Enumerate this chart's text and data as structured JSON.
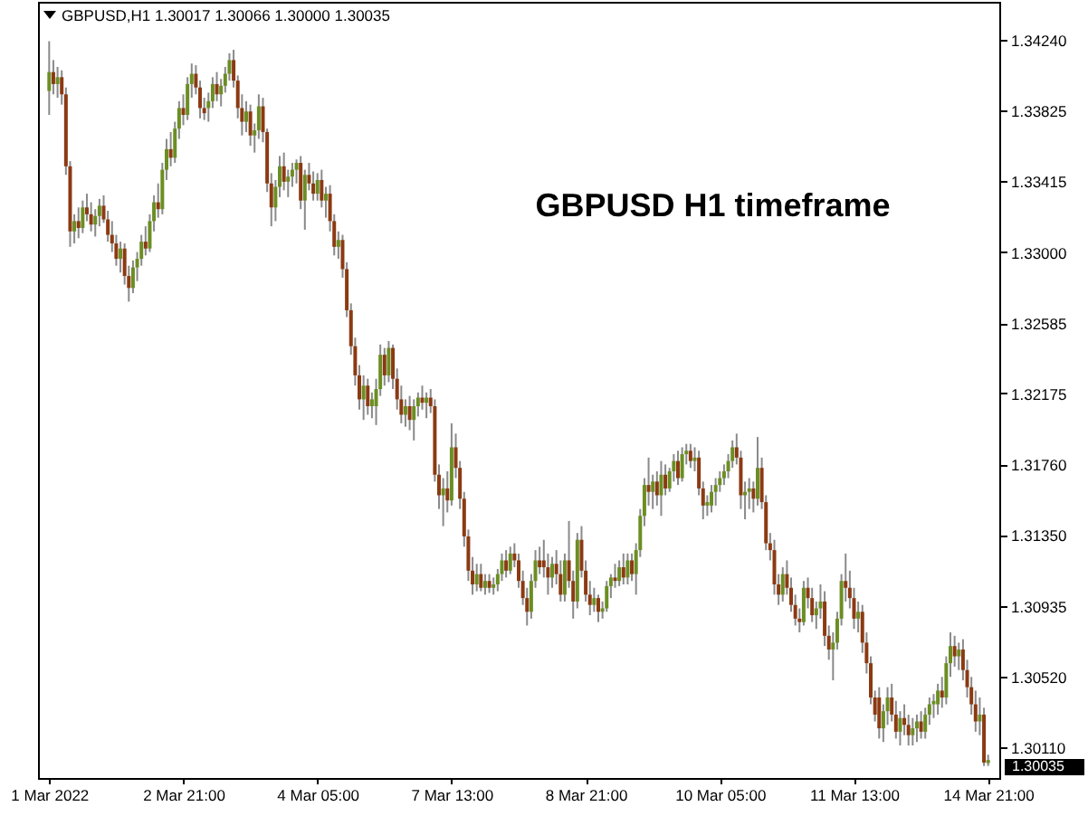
{
  "chart_data": {
    "type": "candlestick",
    "title": "GBPUSD,H1 1.30017 1.30066 1.30000 1.30035",
    "categories": [
      "1 Mar 2022",
      null,
      null,
      null,
      null,
      null,
      null,
      null,
      null,
      null,
      null,
      null,
      null,
      null,
      null,
      null,
      null,
      null,
      null,
      null,
      null,
      null,
      null,
      null,
      null,
      null,
      null,
      null,
      null,
      null,
      null,
      null,
      "2 Mar 21:00",
      null,
      null,
      null,
      null,
      null,
      null,
      null,
      null,
      null,
      null,
      null,
      null,
      null,
      null,
      null,
      null,
      null,
      null,
      null,
      null,
      null,
      null,
      null,
      null,
      null,
      null,
      null,
      null,
      null,
      null,
      null,
      "4 Mar 05:00",
      null,
      null,
      null,
      null,
      null,
      null,
      null,
      null,
      null,
      null,
      null,
      null,
      null,
      null,
      null,
      null,
      null,
      null,
      null,
      null,
      null,
      null,
      null,
      null,
      null,
      null,
      null,
      null,
      null,
      null,
      null,
      "7 Mar 13:00",
      null,
      null,
      null,
      null,
      null,
      null,
      null,
      null,
      null,
      null,
      null,
      null,
      null,
      null,
      null,
      null,
      null,
      null,
      null,
      null,
      null,
      null,
      null,
      null,
      null,
      null,
      null,
      null,
      null,
      null,
      null,
      "8 Mar 21:00",
      null,
      null,
      null,
      null,
      null,
      null,
      null,
      null,
      null,
      null,
      null,
      null,
      null,
      null,
      null,
      null,
      null,
      null,
      null,
      null,
      null,
      null,
      null,
      null,
      null,
      null,
      null,
      null,
      null,
      null,
      null,
      "10 Mar 05:00",
      null,
      null,
      null,
      null,
      null,
      null,
      null,
      null,
      null,
      null,
      null,
      null,
      null,
      null,
      null,
      null,
      null,
      null,
      null,
      null,
      null,
      null,
      null,
      null,
      null,
      null,
      null,
      null,
      null,
      null,
      null,
      "11 Mar 13:00",
      null,
      null,
      null,
      null,
      null,
      null,
      null,
      null,
      null,
      null,
      null,
      null,
      null,
      null,
      null,
      null,
      null,
      null,
      null,
      null,
      null,
      null,
      null,
      null,
      null,
      null,
      null,
      null,
      null,
      null,
      null,
      "14 Mar 21:00"
    ],
    "ohlc": [
      [
        1.3394,
        1.3423,
        1.338,
        1.3405
      ],
      [
        1.3405,
        1.3412,
        1.3392,
        1.3398
      ],
      [
        1.3398,
        1.3408,
        1.339,
        1.3402
      ],
      [
        1.3402,
        1.3406,
        1.3386,
        1.3392
      ],
      [
        1.3392,
        1.3396,
        1.3345,
        1.335
      ],
      [
        1.335,
        1.3353,
        1.3303,
        1.3312
      ],
      [
        1.3312,
        1.3322,
        1.3305,
        1.3318
      ],
      [
        1.3318,
        1.3326,
        1.3308,
        1.3314
      ],
      [
        1.3314,
        1.333,
        1.3311,
        1.3326
      ],
      [
        1.3326,
        1.3334,
        1.3318,
        1.3322
      ],
      [
        1.3322,
        1.3329,
        1.3312,
        1.3316
      ],
      [
        1.3316,
        1.3325,
        1.3309,
        1.3321
      ],
      [
        1.3321,
        1.3331,
        1.3315,
        1.3327
      ],
      [
        1.3327,
        1.3333,
        1.3317,
        1.3319
      ],
      [
        1.3319,
        1.3324,
        1.3306,
        1.331
      ],
      [
        1.331,
        1.3318,
        1.33,
        1.3305
      ],
      [
        1.3305,
        1.331,
        1.3292,
        1.3296
      ],
      [
        1.3296,
        1.3306,
        1.3288,
        1.3302
      ],
      [
        1.3302,
        1.3305,
        1.3281,
        1.3286
      ],
      [
        1.3286,
        1.3292,
        1.3271,
        1.3279
      ],
      [
        1.3279,
        1.3295,
        1.3276,
        1.3291
      ],
      [
        1.3291,
        1.33,
        1.3283,
        1.3296
      ],
      [
        1.3296,
        1.331,
        1.3292,
        1.3306
      ],
      [
        1.3306,
        1.3315,
        1.3298,
        1.3302
      ],
      [
        1.3302,
        1.3322,
        1.33,
        1.3318
      ],
      [
        1.3318,
        1.3333,
        1.3312,
        1.3329
      ],
      [
        1.3329,
        1.334,
        1.332,
        1.3325
      ],
      [
        1.3325,
        1.3352,
        1.3322,
        1.3348
      ],
      [
        1.3348,
        1.3366,
        1.3342,
        1.336
      ],
      [
        1.336,
        1.337,
        1.335,
        1.3355
      ],
      [
        1.3355,
        1.3376,
        1.3352,
        1.3372
      ],
      [
        1.3372,
        1.3388,
        1.3366,
        1.3384
      ],
      [
        1.3384,
        1.3392,
        1.3374,
        1.338
      ],
      [
        1.338,
        1.3402,
        1.3377,
        1.3398
      ],
      [
        1.3398,
        1.341,
        1.339,
        1.3404
      ],
      [
        1.3404,
        1.3409,
        1.3392,
        1.3396
      ],
      [
        1.3396,
        1.34,
        1.3378,
        1.3384
      ],
      [
        1.3384,
        1.339,
        1.3377,
        1.3381
      ],
      [
        1.3384,
        1.3393,
        1.3376,
        1.3388
      ],
      [
        1.3388,
        1.3402,
        1.3384,
        1.3398
      ],
      [
        1.3398,
        1.3405,
        1.3388,
        1.3392
      ],
      [
        1.3392,
        1.3401,
        1.3385,
        1.3397
      ],
      [
        1.3397,
        1.3408,
        1.3393,
        1.3404
      ],
      [
        1.3404,
        1.3416,
        1.34,
        1.3412
      ],
      [
        1.3412,
        1.3418,
        1.3396,
        1.34
      ],
      [
        1.34,
        1.3403,
        1.3378,
        1.3384
      ],
      [
        1.3384,
        1.3392,
        1.3368,
        1.3376
      ],
      [
        1.3376,
        1.3388,
        1.337,
        1.3382
      ],
      [
        1.3382,
        1.3386,
        1.3362,
        1.3368
      ],
      [
        1.3368,
        1.3375,
        1.3358,
        1.3371
      ],
      [
        1.3371,
        1.3392,
        1.3366,
        1.3385
      ],
      [
        1.3385,
        1.339,
        1.3364,
        1.337
      ],
      [
        1.337,
        1.3372,
        1.3335,
        1.334
      ],
      [
        1.334,
        1.3346,
        1.3315,
        1.3326
      ],
      [
        1.3326,
        1.3342,
        1.3318,
        1.3338
      ],
      [
        1.3338,
        1.3356,
        1.3332,
        1.335
      ],
      [
        1.335,
        1.3358,
        1.3336,
        1.3341
      ],
      [
        1.3341,
        1.3348,
        1.3332,
        1.3344
      ],
      [
        1.3344,
        1.3352,
        1.3338,
        1.3348
      ],
      [
        1.3348,
        1.3354,
        1.334,
        1.3352
      ],
      [
        1.3352,
        1.3356,
        1.3325,
        1.333
      ],
      [
        1.333,
        1.3348,
        1.3313,
        1.3345
      ],
      [
        1.3345,
        1.3352,
        1.3336,
        1.334
      ],
      [
        1.334,
        1.3347,
        1.333,
        1.3334
      ],
      [
        1.3334,
        1.3346,
        1.333,
        1.3342
      ],
      [
        1.3342,
        1.3348,
        1.3326,
        1.333
      ],
      [
        1.333,
        1.3338,
        1.332,
        1.3334
      ],
      [
        1.3334,
        1.3339,
        1.3312,
        1.3318
      ],
      [
        1.3318,
        1.3322,
        1.3298,
        1.3303
      ],
      [
        1.3303,
        1.3312,
        1.3296,
        1.3307
      ],
      [
        1.3307,
        1.331,
        1.3285,
        1.329
      ],
      [
        1.329,
        1.3294,
        1.3262,
        1.3266
      ],
      [
        1.3266,
        1.327,
        1.324,
        1.3245
      ],
      [
        1.3245,
        1.325,
        1.3222,
        1.3228
      ],
      [
        1.3228,
        1.3234,
        1.3208,
        1.3214
      ],
      [
        1.3214,
        1.3228,
        1.3202,
        1.3222
      ],
      [
        1.3222,
        1.3226,
        1.3205,
        1.321
      ],
      [
        1.321,
        1.3218,
        1.3203,
        1.3214
      ],
      [
        1.321,
        1.3226,
        1.3199,
        1.322
      ],
      [
        1.322,
        1.3246,
        1.3216,
        1.324
      ],
      [
        1.324,
        1.3244,
        1.3222,
        1.3228
      ],
      [
        1.3228,
        1.3248,
        1.3224,
        1.3244
      ],
      [
        1.3244,
        1.3246,
        1.322,
        1.3226
      ],
      [
        1.3226,
        1.3232,
        1.3208,
        1.3214
      ],
      [
        1.3214,
        1.3222,
        1.32,
        1.3205
      ],
      [
        1.3205,
        1.3214,
        1.3198,
        1.321
      ],
      [
        1.321,
        1.3216,
        1.3196,
        1.3202
      ],
      [
        1.3202,
        1.3214,
        1.319,
        1.321
      ],
      [
        1.321,
        1.3218,
        1.3204,
        1.3215
      ],
      [
        1.3215,
        1.3222,
        1.3208,
        1.3212
      ],
      [
        1.3212,
        1.3218,
        1.3203,
        1.3215
      ],
      [
        1.3215,
        1.322,
        1.3206,
        1.321
      ],
      [
        1.321,
        1.3214,
        1.3166,
        1.317
      ],
      [
        1.317,
        1.3176,
        1.315,
        1.3158
      ],
      [
        1.3158,
        1.3168,
        1.314,
        1.3162
      ],
      [
        1.3162,
        1.3172,
        1.3148,
        1.3155
      ],
      [
        1.3155,
        1.32,
        1.3152,
        1.3186
      ],
      [
        1.3186,
        1.3194,
        1.3168,
        1.3174
      ],
      [
        1.3174,
        1.3178,
        1.315,
        1.3156
      ],
      [
        1.3156,
        1.316,
        1.3128,
        1.3134
      ],
      [
        1.3134,
        1.3138,
        1.3108,
        1.3114
      ],
      [
        1.3114,
        1.3122,
        1.31,
        1.3106
      ],
      [
        1.3106,
        1.3118,
        1.3102,
        1.3112
      ],
      [
        1.3112,
        1.3118,
        1.3102,
        1.3104
      ],
      [
        1.3104,
        1.3112,
        1.31,
        1.3108
      ],
      [
        1.3108,
        1.3112,
        1.3101,
        1.3104
      ],
      [
        1.3104,
        1.311,
        1.31,
        1.3106
      ],
      [
        1.3106,
        1.3115,
        1.3102,
        1.3112
      ],
      [
        1.3112,
        1.3124,
        1.3108,
        1.312
      ],
      [
        1.312,
        1.3126,
        1.311,
        1.3114
      ],
      [
        1.3114,
        1.3128,
        1.3112,
        1.3124
      ],
      [
        1.3124,
        1.313,
        1.3116,
        1.312
      ],
      [
        1.312,
        1.3124,
        1.3104,
        1.3108
      ],
      [
        1.3108,
        1.3114,
        1.3094,
        1.3098
      ],
      [
        1.3098,
        1.3104,
        1.3082,
        1.309
      ],
      [
        1.309,
        1.3112,
        1.3086,
        1.3108
      ],
      [
        1.3108,
        1.3126,
        1.3104,
        1.312
      ],
      [
        1.312,
        1.3128,
        1.3112,
        1.3116
      ],
      [
        1.312,
        1.3132,
        1.311,
        1.3116
      ],
      [
        1.3116,
        1.3124,
        1.31,
        1.311
      ],
      [
        1.311,
        1.3122,
        1.3104,
        1.3118
      ],
      [
        1.3118,
        1.3126,
        1.3106,
        1.3112
      ],
      [
        1.3112,
        1.312,
        1.3096,
        1.31
      ],
      [
        1.31,
        1.3124,
        1.3096,
        1.312
      ],
      [
        1.312,
        1.3143,
        1.3104,
        1.3108
      ],
      [
        1.3108,
        1.3114,
        1.3086,
        1.3096
      ],
      [
        1.3096,
        1.3136,
        1.3092,
        1.3132
      ],
      [
        1.3132,
        1.314,
        1.311,
        1.3114
      ],
      [
        1.3114,
        1.312,
        1.3096,
        1.31
      ],
      [
        1.31,
        1.3108,
        1.3088,
        1.3094
      ],
      [
        1.3094,
        1.3104,
        1.309,
        1.3098
      ],
      [
        1.3098,
        1.31,
        1.3084,
        1.309
      ],
      [
        1.309,
        1.3096,
        1.3086,
        1.3092
      ],
      [
        1.3092,
        1.3108,
        1.309,
        1.3105
      ],
      [
        1.3105,
        1.3112,
        1.3098,
        1.311
      ],
      [
        1.311,
        1.3118,
        1.3104,
        1.3108
      ],
      [
        1.3108,
        1.312,
        1.3105,
        1.3116
      ],
      [
        1.3116,
        1.3124,
        1.3106,
        1.311
      ],
      [
        1.311,
        1.3124,
        1.3106,
        1.312
      ],
      [
        1.312,
        1.3124,
        1.3108,
        1.3112
      ],
      [
        1.3112,
        1.313,
        1.31,
        1.3126
      ],
      [
        1.3126,
        1.315,
        1.3122,
        1.3146
      ],
      [
        1.3146,
        1.3168,
        1.314,
        1.3164
      ],
      [
        1.3164,
        1.318,
        1.3152,
        1.316
      ],
      [
        1.316,
        1.317,
        1.315,
        1.3166
      ],
      [
        1.3166,
        1.3172,
        1.3152,
        1.3158
      ],
      [
        1.3158,
        1.3178,
        1.3146,
        1.317
      ],
      [
        1.317,
        1.3176,
        1.3158,
        1.3162
      ],
      [
        1.3162,
        1.3174,
        1.316,
        1.3172
      ],
      [
        1.3172,
        1.3182,
        1.3166,
        1.3178
      ],
      [
        1.3178,
        1.3184,
        1.3164,
        1.3168
      ],
      [
        1.3168,
        1.3186,
        1.3166,
        1.3182
      ],
      [
        1.3182,
        1.3188,
        1.3176,
        1.3184
      ],
      [
        1.3184,
        1.3188,
        1.3174,
        1.3178
      ],
      [
        1.3178,
        1.3186,
        1.3172,
        1.318
      ],
      [
        1.318,
        1.3184,
        1.3158,
        1.3162
      ],
      [
        1.3162,
        1.3166,
        1.3144,
        1.3152
      ],
      [
        1.3152,
        1.3158,
        1.3146,
        1.3154
      ],
      [
        1.3152,
        1.3164,
        1.3148,
        1.316
      ],
      [
        1.316,
        1.3168,
        1.3152,
        1.3164
      ],
      [
        1.3164,
        1.3172,
        1.316,
        1.3168
      ],
      [
        1.3168,
        1.3176,
        1.3164,
        1.3172
      ],
      [
        1.3172,
        1.3182,
        1.3168,
        1.3178
      ],
      [
        1.3178,
        1.319,
        1.3174,
        1.3186
      ],
      [
        1.3186,
        1.3194,
        1.3176,
        1.318
      ],
      [
        1.318,
        1.3184,
        1.315,
        1.3158
      ],
      [
        1.3158,
        1.3166,
        1.3144,
        1.316
      ],
      [
        1.316,
        1.3168,
        1.315,
        1.3162
      ],
      [
        1.3162,
        1.3166,
        1.3148,
        1.3156
      ],
      [
        1.3156,
        1.3192,
        1.3152,
        1.3174
      ],
      [
        1.3174,
        1.318,
        1.315,
        1.3154
      ],
      [
        1.3154,
        1.3158,
        1.3126,
        1.313
      ],
      [
        1.313,
        1.3136,
        1.312,
        1.3126
      ],
      [
        1.3126,
        1.3132,
        1.31,
        1.3106
      ],
      [
        1.3106,
        1.3112,
        1.3094,
        1.31
      ],
      [
        1.31,
        1.3116,
        1.3096,
        1.3112
      ],
      [
        1.3112,
        1.312,
        1.31,
        1.3104
      ],
      [
        1.3104,
        1.311,
        1.309,
        1.3094
      ],
      [
        1.3094,
        1.31,
        1.3082,
        1.3086
      ],
      [
        1.3086,
        1.3092,
        1.3078,
        1.3084
      ],
      [
        1.3084,
        1.3108,
        1.3082,
        1.3104
      ],
      [
        1.3104,
        1.311,
        1.3092,
        1.3098
      ],
      [
        1.3098,
        1.3104,
        1.3084,
        1.3088
      ],
      [
        1.3088,
        1.3096,
        1.308,
        1.3092
      ],
      [
        1.3092,
        1.3106,
        1.3086,
        1.3096
      ],
      [
        1.3096,
        1.3102,
        1.307,
        1.3076
      ],
      [
        1.3076,
        1.3082,
        1.3062,
        1.3068
      ],
      [
        1.3068,
        1.3078,
        1.305,
        1.3072
      ],
      [
        1.3072,
        1.309,
        1.3068,
        1.3086
      ],
      [
        1.3086,
        1.3112,
        1.3082,
        1.3108
      ],
      [
        1.3108,
        1.3124,
        1.3096,
        1.3104
      ],
      [
        1.3104,
        1.3114,
        1.3092,
        1.3098
      ],
      [
        1.3098,
        1.3104,
        1.308,
        1.3086
      ],
      [
        1.3086,
        1.3096,
        1.3078,
        1.309
      ],
      [
        1.309,
        1.3094,
        1.3066,
        1.3072
      ],
      [
        1.3072,
        1.3078,
        1.3054,
        1.306
      ],
      [
        1.306,
        1.3064,
        1.3036,
        1.304
      ],
      [
        1.304,
        1.3044,
        1.3026,
        1.303
      ],
      [
        1.304,
        1.3046,
        1.3016,
        1.3022
      ],
      [
        1.3022,
        1.3036,
        1.3014,
        1.3032
      ],
      [
        1.3032,
        1.3046,
        1.3024,
        1.304
      ],
      [
        1.304,
        1.3048,
        1.3026,
        1.303
      ],
      [
        1.303,
        1.3038,
        1.3016,
        1.302
      ],
      [
        1.302,
        1.3032,
        1.3012,
        1.3028
      ],
      [
        1.3028,
        1.3036,
        1.3018,
        1.3024
      ],
      [
        1.3024,
        1.303,
        1.3012,
        1.3018
      ],
      [
        1.3018,
        1.3028,
        1.3012,
        1.3022
      ],
      [
        1.3022,
        1.303,
        1.3014,
        1.3026
      ],
      [
        1.3026,
        1.3032,
        1.3016,
        1.302
      ],
      [
        1.302,
        1.3034,
        1.3016,
        1.303
      ],
      [
        1.303,
        1.304,
        1.3024,
        1.3036
      ],
      [
        1.3036,
        1.3042,
        1.3028,
        1.3038
      ],
      [
        1.3036,
        1.3048,
        1.303,
        1.3044
      ],
      [
        1.3044,
        1.3052,
        1.3034,
        1.304
      ],
      [
        1.304,
        1.3064,
        1.3036,
        1.306
      ],
      [
        1.306,
        1.3078,
        1.3052,
        1.307
      ],
      [
        1.307,
        1.3076,
        1.3058,
        1.3064
      ],
      [
        1.3064,
        1.3072,
        1.3056,
        1.3068
      ],
      [
        1.3068,
        1.3074,
        1.305,
        1.3056
      ],
      [
        1.3056,
        1.3062,
        1.304,
        1.3046
      ],
      [
        1.3046,
        1.3052,
        1.303,
        1.3036
      ],
      [
        1.3036,
        1.3044,
        1.302,
        1.3026
      ],
      [
        1.3026,
        1.304,
        1.3018,
        1.303
      ],
      [
        1.303,
        1.3034,
        1.3,
        1.3002
      ],
      [
        1.30017,
        1.30066,
        1.3,
        1.30035
      ]
    ],
    "colors": [
      "#6b8e23",
      "#8b3a12",
      "#6b8e23",
      "#8b3a12",
      "#8b3a12",
      "#8b3a12",
      "#6b8e23",
      "#8b3a12",
      "#6b8e23",
      "#8b3a12",
      "#8b3a12",
      "#6b8e23",
      "#6b8e23",
      "#8b3a12",
      "#8b3a12",
      "#8b3a12",
      "#8b3a12",
      "#6b8e23",
      "#8b3a12",
      "#8b3a12",
      "#6b8e23",
      "#6b8e23",
      "#6b8e23",
      "#8b3a12",
      "#6b8e23",
      "#6b8e23",
      "#8b3a12",
      "#6b8e23",
      "#6b8e23",
      "#8b3a12",
      "#6b8e23",
      "#6b8e23",
      "#8b3a12",
      "#6b8e23",
      "#6b8e23",
      "#8b3a12",
      "#8b3a12",
      "#8b3a12",
      "#6b8e23",
      "#6b8e23",
      "#8b3a12",
      "#6b8e23",
      "#6b8e23",
      "#6b8e23",
      "#8b3a12",
      "#8b3a12",
      "#8b3a12",
      "#6b8e23",
      "#8b3a12",
      "#6b8e23",
      "#6b8e23",
      "#8b3a12",
      "#8b3a12",
      "#8b3a12",
      "#6b8e23",
      "#6b8e23",
      "#8b3a12",
      "#6b8e23",
      "#6b8e23",
      "#6b8e23",
      "#8b3a12",
      "#6b8e23",
      "#8b3a12",
      "#8b3a12",
      "#6b8e23",
      "#8b3a12",
      "#6b8e23",
      "#8b3a12",
      "#8b3a12",
      "#6b8e23",
      "#8b3a12",
      "#8b3a12",
      "#8b3a12",
      "#8b3a12",
      "#8b3a12",
      "#6b8e23",
      "#8b3a12",
      "#6b8e23",
      "#6b8e23",
      "#6b8e23",
      "#8b3a12",
      "#6b8e23",
      "#8b3a12",
      "#8b3a12",
      "#8b3a12",
      "#6b8e23",
      "#8b3a12",
      "#6b8e23",
      "#6b8e23",
      "#8b3a12",
      "#6b8e23",
      "#8b3a12",
      "#8b3a12",
      "#8b3a12",
      "#6b8e23",
      "#8b3a12",
      "#6b8e23",
      "#8b3a12",
      "#8b3a12",
      "#8b3a12",
      "#8b3a12",
      "#8b3a12",
      "#6b8e23",
      "#8b3a12",
      "#6b8e23",
      "#8b3a12",
      "#6b8e23",
      "#6b8e23",
      "#6b8e23",
      "#8b3a12",
      "#6b8e23",
      "#8b3a12",
      "#8b3a12",
      "#8b3a12",
      "#8b3a12",
      "#6b8e23",
      "#6b8e23",
      "#8b3a12",
      "#8b3a12",
      "#8b3a12",
      "#6b8e23",
      "#8b3a12",
      "#8b3a12",
      "#6b8e23",
      "#8b3a12",
      "#8b3a12",
      "#6b8e23",
      "#8b3a12",
      "#8b3a12",
      "#8b3a12",
      "#6b8e23",
      "#8b3a12",
      "#6b8e23",
      "#6b8e23",
      "#6b8e23",
      "#8b3a12",
      "#6b8e23",
      "#8b3a12",
      "#6b8e23",
      "#8b3a12",
      "#6b8e23",
      "#6b8e23",
      "#6b8e23",
      "#8b3a12",
      "#6b8e23",
      "#8b3a12",
      "#6b8e23",
      "#8b3a12",
      "#6b8e23",
      "#6b8e23",
      "#8b3a12",
      "#6b8e23",
      "#6b8e23",
      "#8b3a12",
      "#6b8e23",
      "#8b3a12",
      "#8b3a12",
      "#6b8e23",
      "#6b8e23",
      "#6b8e23",
      "#6b8e23",
      "#6b8e23",
      "#6b8e23",
      "#6b8e23",
      "#8b3a12",
      "#8b3a12",
      "#6b8e23",
      "#6b8e23",
      "#8b3a12",
      "#6b8e23",
      "#8b3a12",
      "#8b3a12",
      "#8b3a12",
      "#8b3a12",
      "#8b3a12",
      "#6b8e23",
      "#8b3a12",
      "#8b3a12",
      "#8b3a12",
      "#8b3a12",
      "#6b8e23",
      "#8b3a12",
      "#8b3a12",
      "#6b8e23",
      "#6b8e23",
      "#8b3a12",
      "#8b3a12",
      "#6b8e23",
      "#6b8e23",
      "#6b8e23",
      "#8b3a12",
      "#8b3a12",
      "#8b3a12",
      "#6b8e23",
      "#8b3a12",
      "#8b3a12",
      "#8b3a12",
      "#8b3a12",
      "#8b3a12",
      "#6b8e23",
      "#6b8e23",
      "#8b3a12",
      "#8b3a12",
      "#6b8e23",
      "#8b3a12",
      "#8b3a12",
      "#6b8e23",
      "#6b8e23",
      "#8b3a12",
      "#6b8e23",
      "#6b8e23",
      "#6b8e23",
      "#6b8e23",
      "#8b3a12",
      "#6b8e23",
      "#6b8e23",
      "#8b3a12",
      "#6b8e23",
      "#8b3a12",
      "#8b3a12",
      "#8b3a12",
      "#8b3a12",
      "#6b8e23",
      "#8b3a12",
      "#6b8e23"
    ],
    "ylim": [
      1.2993,
      1.3446
    ],
    "yticks": [
      {
        "value": 1.3424,
        "label": "1.34240"
      },
      1.33825,
      1.33415,
      {
        "value": 1.33,
        "label": "1.33000"
      },
      1.32585,
      1.32175,
      {
        "value": 1.3176,
        "label": "1.31760"
      },
      {
        "value": 1.3135,
        "label": "1.31350"
      },
      1.30935,
      {
        "value": 1.3052,
        "label": "1.30520"
      },
      {
        "value": 1.3011,
        "label": "1.30110"
      }
    ],
    "annotations": [
      "GBPUSD H1 timeframe",
      "1.30035"
    ]
  }
}
